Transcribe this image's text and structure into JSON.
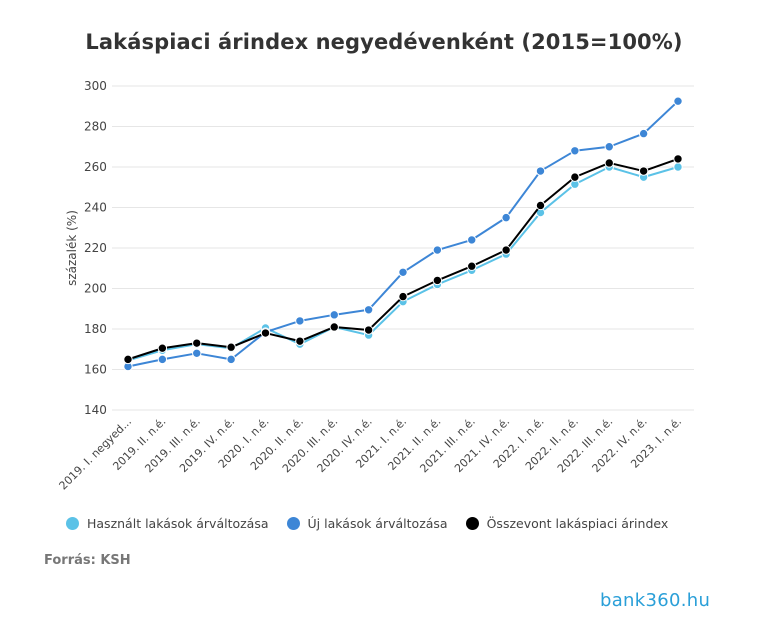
{
  "chart_data": {
    "type": "line",
    "title": "Lakáspiaci árindex negyedévenként (2015=100%)",
    "xlabel": "",
    "ylabel": "százalék (%)",
    "ylim": [
      140,
      300
    ],
    "yticks": [
      140,
      160,
      180,
      200,
      220,
      240,
      260,
      280,
      300
    ],
    "grid": true,
    "legend_position": "bottom",
    "categories": [
      "2019. I. negyed...",
      "2019. II. n.é.",
      "2019. III. n.é.",
      "2019. IV. n.é.",
      "2020. I. n.é.",
      "2020. II. n.é.",
      "2020. III. n.é.",
      "2020. IV. n.é.",
      "2021. I. n.é.",
      "2021. II. n.é.",
      "2021. III. n.é.",
      "2021. IV. n.é.",
      "2022. I. n.é.",
      "2022. II. n.é.",
      "2022. III. n.é.",
      "2022. IV. n.é.",
      "2023. I. n.é."
    ],
    "series": [
      {
        "name": "Használt lakások árváltozása",
        "color": "#5bc2e7",
        "values": [
          164.5,
          169.5,
          172.5,
          170.5,
          180.5,
          172.5,
          181,
          177,
          193.5,
          202,
          209,
          217,
          237.5,
          251.5,
          260,
          255,
          260
        ]
      },
      {
        "name": "Új lakások árváltozása",
        "color": "#3d86d6",
        "values": [
          161.5,
          165,
          168,
          165,
          178.5,
          184,
          187,
          189.5,
          208,
          219,
          224,
          235,
          258,
          268,
          270,
          276.5,
          292.5
        ]
      },
      {
        "name": "Összevont lakáspiaci árindex",
        "color": "#000000",
        "values": [
          165,
          170.5,
          173,
          171,
          178,
          174,
          181,
          179.5,
          196,
          204,
          211,
          219,
          241,
          255,
          262,
          258,
          264
        ]
      }
    ]
  },
  "source": "Forrás: KSH",
  "brand": "bank360.hu"
}
